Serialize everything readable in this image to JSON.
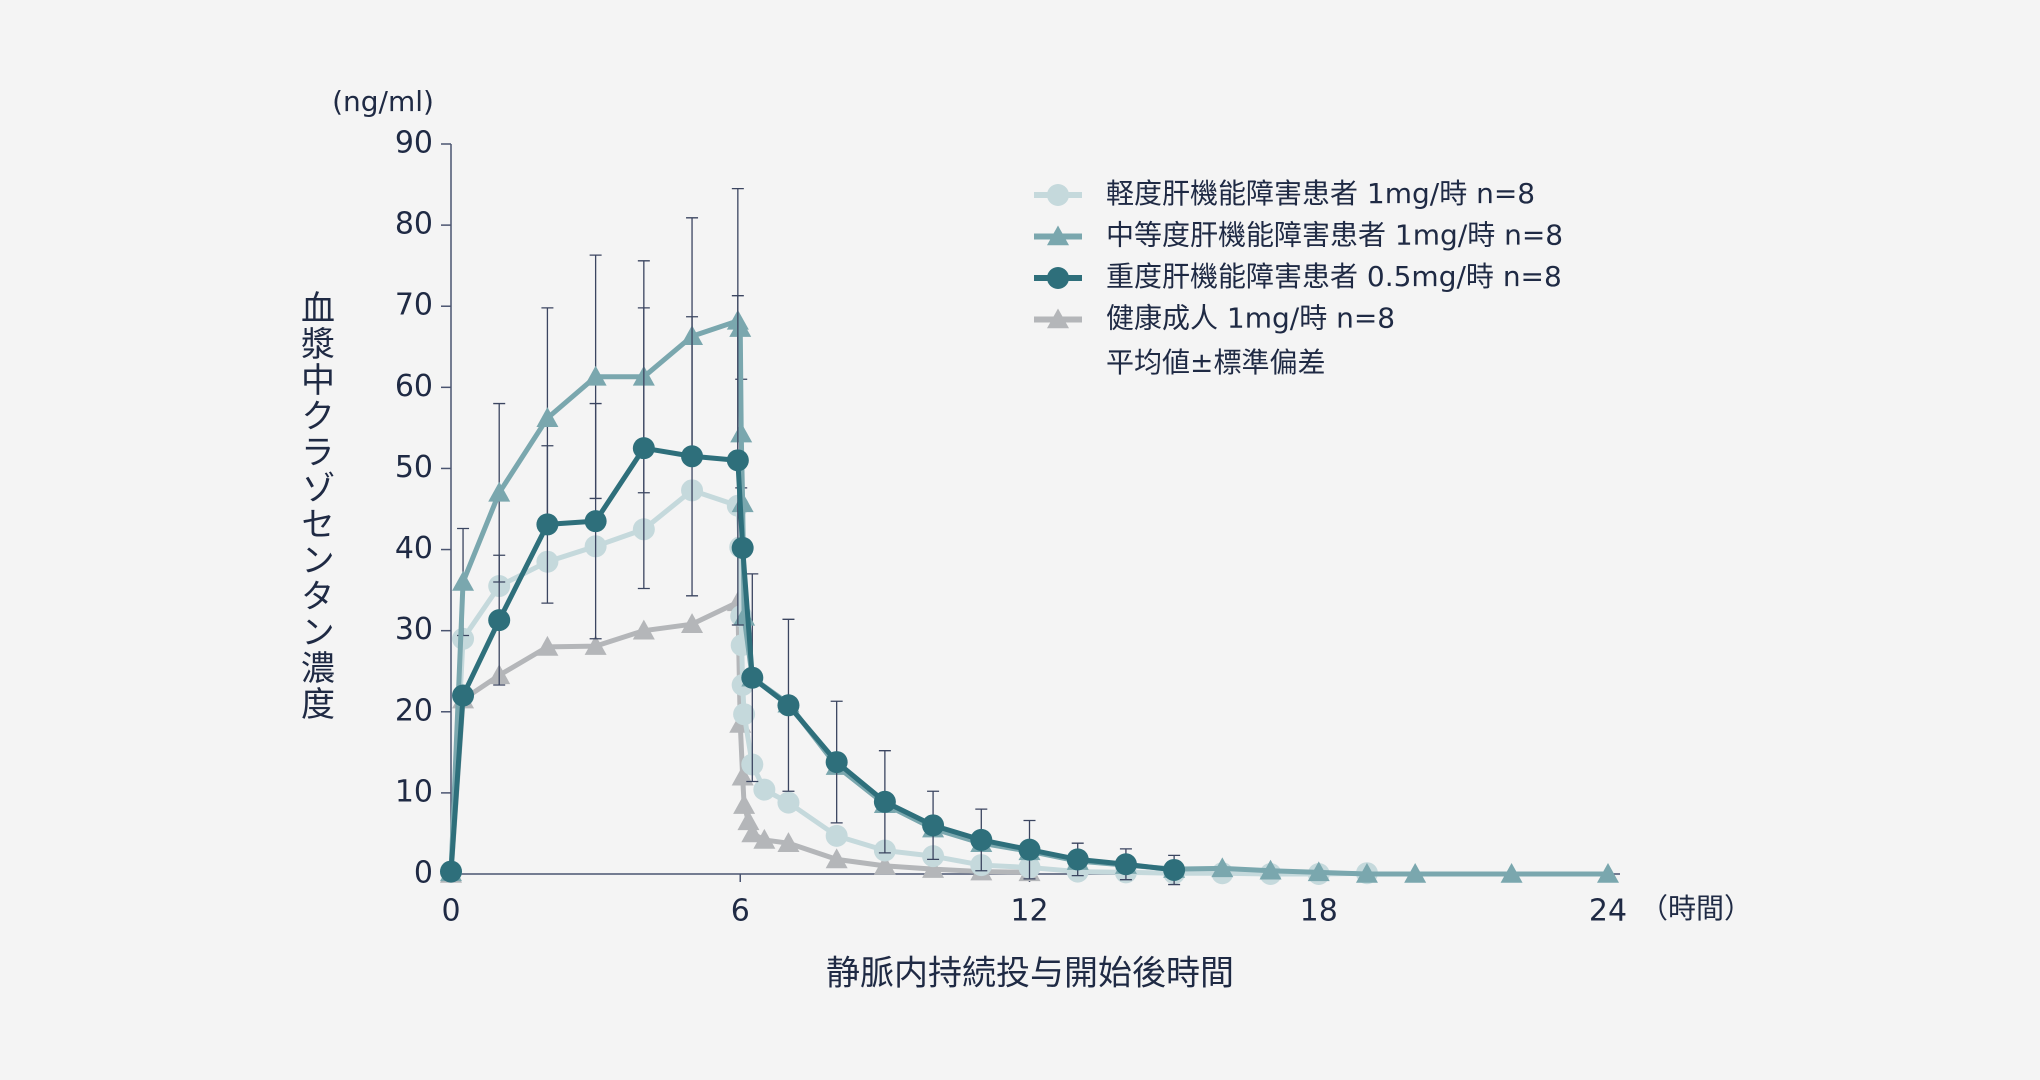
{
  "chart_data": {
    "type": "line",
    "y_unit": "(ng/ml)",
    "y_label": "血漿中クラゾセンタン濃度",
    "x_label": "静脈内持続投与開始後時間",
    "x_unit": "（時間）",
    "note": "平均値±標準偏差",
    "xlim": [
      0,
      24
    ],
    "xticks": [
      0,
      6,
      12,
      18,
      24
    ],
    "ylim": [
      0,
      90
    ],
    "yticks": [
      0,
      10,
      20,
      30,
      40,
      50,
      60,
      70,
      80,
      90
    ],
    "series": [
      {
        "name": "軽度肝機能障害患者 1mg/時 n=8",
        "color": "#c5d9dc",
        "marker": "circle",
        "x": [
          0,
          0.25,
          1,
          2,
          3,
          4,
          5,
          5.95,
          6.0,
          6.02,
          6.03,
          6.05,
          6.08,
          6.25,
          6.5,
          7,
          8,
          9,
          10,
          11,
          12,
          13,
          14,
          15,
          16,
          17,
          18,
          19
        ],
        "values": [
          0.3,
          29,
          35.5,
          38.5,
          40.4,
          42.5,
          47.3,
          45.4,
          40.3,
          31.8,
          28.2,
          23.3,
          19.7,
          13.5,
          10.4,
          8.8,
          4.7,
          2.9,
          2.2,
          1.1,
          0.8,
          0.3,
          0.2,
          0.1,
          0.1,
          0,
          0,
          0.1
        ]
      },
      {
        "name": "中等度肝機能障害患者 1mg/時 n=8",
        "color": "#7aa7ae",
        "marker": "triangle",
        "x": [
          0,
          0.25,
          1,
          2,
          3,
          4,
          5,
          5.95,
          6.0,
          6.02,
          6.05,
          6.08,
          6.25,
          7,
          8,
          9,
          10,
          11,
          12,
          13,
          14,
          15,
          16,
          17,
          18,
          19,
          20,
          22,
          24
        ],
        "values": [
          0.2,
          36,
          47,
          56.2,
          61.3,
          61.3,
          66.3,
          68.2,
          67.3,
          54.3,
          45.7,
          31.7,
          24.2,
          21,
          13.3,
          8.6,
          5.6,
          3.8,
          2.8,
          1.6,
          1.1,
          0.6,
          0.7,
          0.4,
          0.2,
          0,
          0,
          0,
          0
        ],
        "errors": [
          null,
          6.6,
          11,
          13.6,
          15,
          14.3,
          14.6,
          16.3,
          null,
          6.7,
          null,
          null,
          12.8,
          null,
          null,
          null,
          null,
          null,
          null,
          null,
          null,
          null,
          null,
          null,
          null,
          null,
          null,
          null,
          null
        ]
      },
      {
        "name": "重度肝機能障害患者 0.5mg/時 n=8",
        "color": "#2e6f7b",
        "marker": "circle",
        "x": [
          0,
          0.25,
          1,
          2,
          3,
          4,
          5,
          5.95,
          6.05,
          6.25,
          7,
          8,
          9,
          10,
          11,
          12,
          13,
          14,
          15
        ],
        "values": [
          0.3,
          22,
          31.3,
          43.1,
          43.5,
          52.5,
          51.5,
          51,
          40.2,
          24.2,
          20.8,
          13.8,
          8.9,
          6,
          4.2,
          3,
          1.8,
          1.2,
          0.5
        ],
        "errors": [
          null,
          null,
          8,
          9.7,
          14.5,
          17.3,
          17.2,
          20.3,
          null,
          null,
          10.6,
          7.5,
          6.3,
          4.2,
          3.8,
          3.6,
          2,
          1.9,
          1.8
        ]
      },
      {
        "name": "健康成人 1mg/時 n=8",
        "color": "#b4b6b9",
        "marker": "triangle",
        "x": [
          0,
          0.25,
          1,
          2,
          3,
          4,
          5,
          5.95,
          6.0,
          6.05,
          6.08,
          6.17,
          6.25,
          6.5,
          7,
          8,
          9,
          10,
          11,
          12
        ],
        "values": [
          0,
          21.5,
          24.5,
          28,
          28.1,
          30,
          30.8,
          33.5,
          18.5,
          12,
          8.5,
          6.5,
          5,
          4.2,
          3.8,
          1.8,
          1,
          0.6,
          0.3,
          0.2
        ]
      }
    ]
  }
}
